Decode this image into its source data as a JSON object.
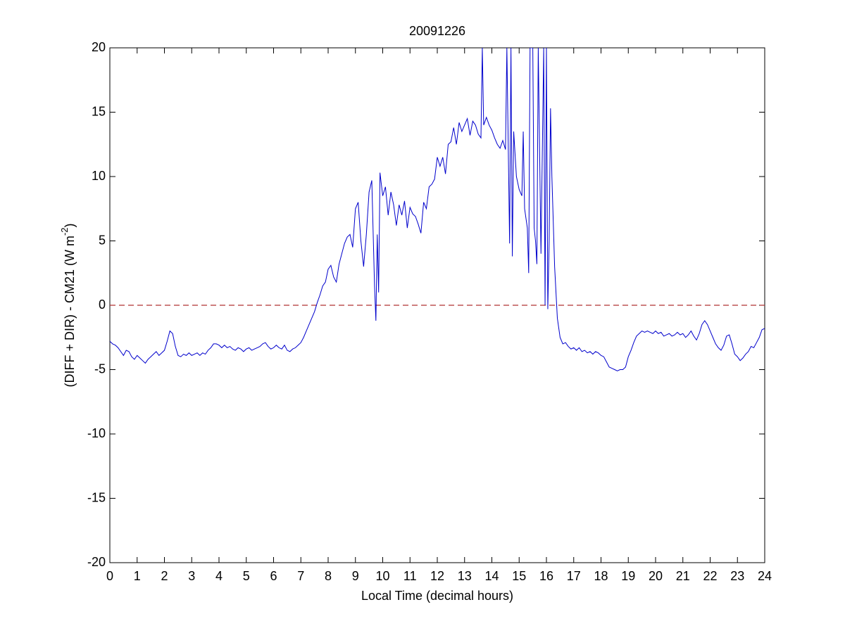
{
  "chart_data": {
    "type": "line",
    "title": "20091226",
    "xlabel": "Local Time (decimal hours)",
    "ylabel": "(DIFF + DIR) - CM21 (W m",
    "ylabel_superscript": "-2",
    "ylabel_suffix": ")",
    "xlim": [
      0,
      24
    ],
    "xticks": [
      0,
      1,
      2,
      3,
      4,
      5,
      6,
      7,
      8,
      9,
      10,
      11,
      12,
      13,
      14,
      15,
      16,
      17,
      18,
      19,
      20,
      21,
      22,
      23,
      24
    ],
    "ylim": [
      -20,
      20
    ],
    "yticks": [
      -20,
      -15,
      -10,
      -5,
      0,
      5,
      10,
      15,
      20
    ],
    "reference_line": {
      "value": 0,
      "color": "#b03030",
      "style": "dashed"
    },
    "x": [
      0,
      0.1,
      0.2,
      0.3,
      0.4,
      0.5,
      0.6,
      0.7,
      0.8,
      0.9,
      1,
      1.1,
      1.2,
      1.3,
      1.4,
      1.5,
      1.6,
      1.7,
      1.8,
      1.9,
      2,
      2.1,
      2.2,
      2.3,
      2.4,
      2.5,
      2.6,
      2.7,
      2.8,
      2.9,
      3,
      3.1,
      3.2,
      3.3,
      3.4,
      3.5,
      3.6,
      3.7,
      3.8,
      3.9,
      4,
      4.1,
      4.2,
      4.3,
      4.4,
      4.5,
      4.6,
      4.7,
      4.8,
      4.9,
      5,
      5.1,
      5.2,
      5.3,
      5.4,
      5.5,
      5.6,
      5.7,
      5.8,
      5.9,
      6,
      6.1,
      6.2,
      6.3,
      6.4,
      6.5,
      6.6,
      6.7,
      6.8,
      6.9,
      7,
      7.1,
      7.2,
      7.3,
      7.4,
      7.5,
      7.6,
      7.7,
      7.8,
      7.9,
      8,
      8.1,
      8.2,
      8.3,
      8.4,
      8.5,
      8.6,
      8.7,
      8.8,
      8.9,
      9,
      9.1,
      9.2,
      9.3,
      9.4,
      9.5,
      9.6,
      9.7,
      9.75,
      9.8,
      9.85,
      9.9,
      10,
      10.1,
      10.2,
      10.3,
      10.4,
      10.5,
      10.6,
      10.7,
      10.8,
      10.9,
      11,
      11.1,
      11.2,
      11.3,
      11.4,
      11.5,
      11.6,
      11.7,
      11.8,
      11.9,
      12,
      12.1,
      12.2,
      12.3,
      12.4,
      12.5,
      12.6,
      12.7,
      12.8,
      12.9,
      13,
      13.1,
      13.2,
      13.3,
      13.4,
      13.5,
      13.6,
      13.65,
      13.7,
      13.8,
      13.9,
      14,
      14.1,
      14.2,
      14.3,
      14.4,
      14.5,
      14.55,
      14.6,
      14.65,
      14.7,
      14.75,
      14.8,
      14.9,
      15,
      15.1,
      15.15,
      15.2,
      15.3,
      15.35,
      15.4,
      15.5,
      15.55,
      15.6,
      15.65,
      15.7,
      15.8,
      15.9,
      15.95,
      16,
      16.05,
      16.1,
      16.15,
      16.2,
      16.3,
      16.4,
      16.5,
      16.6,
      16.7,
      16.8,
      16.9,
      17,
      17.1,
      17.2,
      17.3,
      17.4,
      17.5,
      17.6,
      17.7,
      17.8,
      17.9,
      18,
      18.1,
      18.2,
      18.3,
      18.4,
      18.5,
      18.6,
      18.7,
      18.8,
      18.9,
      19,
      19.1,
      19.2,
      19.3,
      19.4,
      19.5,
      19.6,
      19.7,
      19.8,
      19.9,
      20,
      20.1,
      20.2,
      20.3,
      20.4,
      20.5,
      20.6,
      20.7,
      20.8,
      20.9,
      21,
      21.1,
      21.2,
      21.3,
      21.4,
      21.5,
      21.6,
      21.7,
      21.8,
      21.9,
      22,
      22.1,
      22.2,
      22.3,
      22.4,
      22.5,
      22.6,
      22.7,
      22.8,
      22.9,
      23,
      23.1,
      23.2,
      23.3,
      23.4,
      23.5,
      23.6,
      23.7,
      23.8,
      23.9,
      24
    ],
    "series": [
      {
        "color": "#0000cc",
        "values": [
          -2.8,
          -3.0,
          -3.1,
          -3.3,
          -3.6,
          -3.9,
          -3.5,
          -3.6,
          -4.0,
          -4.2,
          -3.9,
          -4.1,
          -4.3,
          -4.5,
          -4.2,
          -4.0,
          -3.8,
          -3.6,
          -3.9,
          -3.7,
          -3.5,
          -2.8,
          -2.0,
          -2.2,
          -3.2,
          -3.9,
          -4.0,
          -3.8,
          -3.9,
          -3.7,
          -3.9,
          -3.8,
          -3.7,
          -3.9,
          -3.7,
          -3.8,
          -3.5,
          -3.3,
          -3.0,
          -3.0,
          -3.1,
          -3.3,
          -3.1,
          -3.3,
          -3.2,
          -3.4,
          -3.5,
          -3.3,
          -3.4,
          -3.6,
          -3.4,
          -3.3,
          -3.5,
          -3.4,
          -3.3,
          -3.2,
          -3.0,
          -2.9,
          -3.2,
          -3.4,
          -3.3,
          -3.1,
          -3.3,
          -3.4,
          -3.1,
          -3.5,
          -3.6,
          -3.4,
          -3.3,
          -3.1,
          -2.9,
          -2.5,
          -2.0,
          -1.5,
          -1.0,
          -0.5,
          0.2,
          0.8,
          1.5,
          1.8,
          2.8,
          3.1,
          2.2,
          1.8,
          3.2,
          4.0,
          4.8,
          5.3,
          5.5,
          4.5,
          7.5,
          8.0,
          5.0,
          3.0,
          5.5,
          8.8,
          9.7,
          1.5,
          -1.2,
          5.5,
          1.0,
          10.3,
          8.5,
          9.2,
          7.0,
          8.8,
          7.8,
          6.2,
          7.8,
          7.0,
          8.1,
          6.0,
          7.6,
          7.1,
          6.9,
          6.3,
          5.6,
          8.0,
          7.5,
          9.2,
          9.4,
          9.8,
          11.5,
          10.8,
          11.5,
          10.2,
          12.5,
          12.7,
          13.8,
          12.5,
          14.2,
          13.5,
          14.0,
          14.5,
          13.2,
          14.3,
          14.0,
          13.3,
          13.0,
          20,
          14.0,
          14.6,
          14.0,
          13.6,
          13.0,
          12.5,
          12.2,
          12.8,
          12.1,
          20,
          12.5,
          4.8,
          20,
          3.8,
          13.5,
          10.0,
          9.0,
          8.5,
          13.5,
          7.5,
          6.0,
          2.5,
          20,
          20,
          6.0,
          5.0,
          3.2,
          20,
          4.0,
          20,
          0.0,
          20,
          -0.3,
          5.0,
          15.3,
          10.0,
          3.0,
          -1.0,
          -2.5,
          -3.0,
          -2.9,
          -3.2,
          -3.4,
          -3.3,
          -3.5,
          -3.3,
          -3.6,
          -3.5,
          -3.7,
          -3.6,
          -3.8,
          -3.6,
          -3.7,
          -3.9,
          -4.0,
          -4.4,
          -4.8,
          -4.9,
          -5.0,
          -5.1,
          -5.0,
          -5.0,
          -4.8,
          -4.0,
          -3.5,
          -2.9,
          -2.4,
          -2.2,
          -2.0,
          -2.1,
          -2.0,
          -2.1,
          -2.2,
          -2.0,
          -2.2,
          -2.1,
          -2.4,
          -2.3,
          -2.2,
          -2.4,
          -2.3,
          -2.1,
          -2.3,
          -2.2,
          -2.5,
          -2.3,
          -2.0,
          -2.4,
          -2.7,
          -2.2,
          -1.5,
          -1.2,
          -1.5,
          -2.0,
          -2.5,
          -3.0,
          -3.3,
          -3.5,
          -3.1,
          -2.4,
          -2.3,
          -3.0,
          -3.8,
          -4.0,
          -4.3,
          -4.1,
          -3.8,
          -3.6,
          -3.2,
          -3.3,
          -2.9,
          -2.5,
          -1.9,
          -1.8
        ]
      }
    ]
  }
}
